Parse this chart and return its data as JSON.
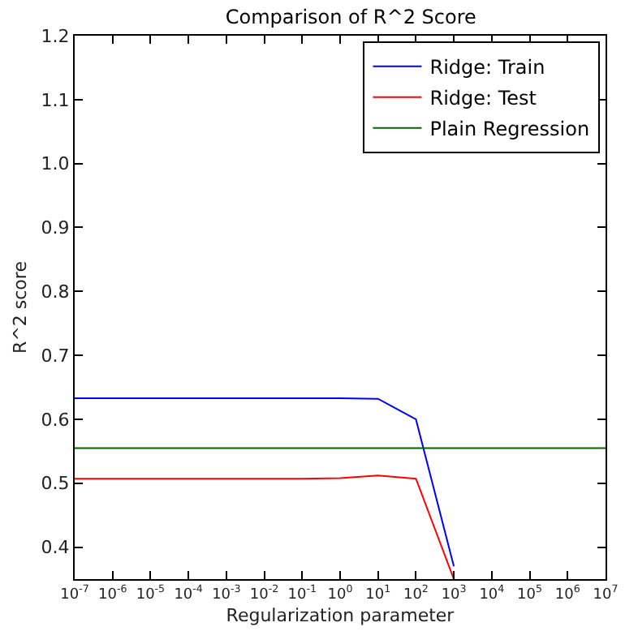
{
  "chart_data": {
    "type": "line",
    "title": "Comparison of R^2 Score",
    "xlabel": "Regularization parameter",
    "ylabel": "R^2 score",
    "log": "x",
    "legend": "top right",
    "marker": "none",
    "line_style": "solid",
    "xlim": [
      1e-07,
      10000000.0
    ],
    "xticks": [
      {
        "value": 1e-07,
        "label": "10$^{-7}$"
      },
      {
        "value": 1e-06,
        "label": "10$^{-6}$"
      },
      {
        "value": 1e-05,
        "label": "10$^{-5}$"
      },
      {
        "value": 0.0001,
        "label": "10$^{-4}$"
      },
      {
        "value": 0.001,
        "label": "10$^{-3}$"
      },
      {
        "value": 0.01,
        "label": "10$^{-2}$"
      },
      {
        "value": 0.1,
        "label": "10$^{-1}$"
      },
      {
        "value": 1,
        "label": "10$^{0}$"
      },
      {
        "value": 10,
        "label": "10$^{1}$"
      },
      {
        "value": 100,
        "label": "10$^{2}$"
      },
      {
        "value": 1000,
        "label": "10$^{3}$"
      },
      {
        "value": 10000.0,
        "label": "10$^{4}$"
      },
      {
        "value": 100000.0,
        "label": "10$^{5}$"
      },
      {
        "value": 1000000.0,
        "label": "10$^{6}$"
      },
      {
        "value": 10000000.0,
        "label": "10$^{7}$"
      }
    ],
    "ylim": [
      0.35,
      1.2
    ],
    "yticks": [
      {
        "value": 0.4,
        "label": "0.4"
      },
      {
        "value": 0.5,
        "label": "0.5"
      },
      {
        "value": 0.6,
        "label": "0.6"
      },
      {
        "value": 0.7,
        "label": "0.7"
      },
      {
        "value": 0.8,
        "label": "0.8"
      },
      {
        "value": 0.9,
        "label": "0.9"
      },
      {
        "value": 1.0,
        "label": "1.0"
      },
      {
        "value": 1.1,
        "label": "1.1"
      },
      {
        "value": 1.2,
        "label": "1.2"
      }
    ],
    "series": [
      {
        "name": "Ridge: Train",
        "color": "#0000ff",
        "x": [
          1e-07,
          1e-06,
          1e-05,
          0.0001,
          0.001,
          0.01,
          0.1,
          1,
          10,
          100,
          1000
        ],
        "values": [
          0.633,
          0.633,
          0.633,
          0.633,
          0.633,
          0.633,
          0.633,
          0.633,
          0.632,
          0.6,
          0.37
        ]
      },
      {
        "name": "Ridge: Test",
        "color": "#ff0000",
        "x": [
          1e-07,
          1e-06,
          1e-05,
          0.0001,
          0.001,
          0.01,
          0.1,
          1,
          10,
          100,
          1000
        ],
        "values": [
          0.507,
          0.507,
          0.507,
          0.507,
          0.507,
          0.507,
          0.507,
          0.508,
          0.512,
          0.507,
          0.35
        ]
      },
      {
        "name": "Plain Regression",
        "color": "#006400",
        "x": [
          1e-07,
          10000000.0
        ],
        "values": [
          0.555,
          0.555
        ]
      }
    ]
  }
}
